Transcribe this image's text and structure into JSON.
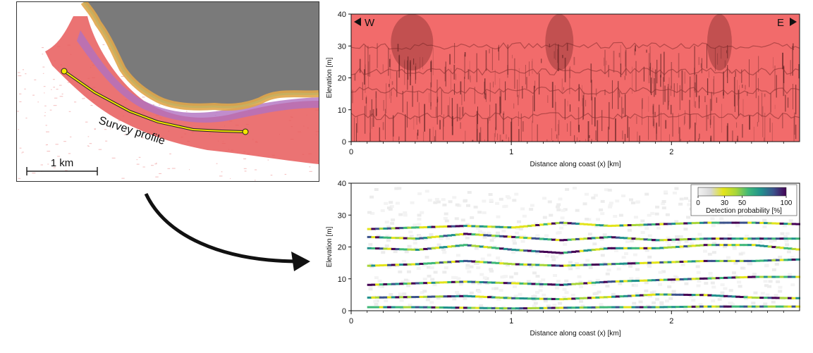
{
  "map": {
    "profile_label": "Survey profile",
    "scale_label": "1 km",
    "colors": {
      "ocean_red": "#e85a5a",
      "land_gray": "#7a7a7a",
      "profile": "#f2e600",
      "contour": "#e0a64a"
    }
  },
  "chart_data": [
    {
      "type": "area",
      "xlabel": "Distance along coast (x) [km]",
      "ylabel": "Elevation [m]",
      "xlim": [
        0,
        2.8
      ],
      "ylim": [
        0,
        40
      ],
      "xticks": [
        0,
        1,
        2
      ],
      "yticks": [
        0,
        10,
        20,
        30,
        40
      ],
      "direction_labels": {
        "west": "W",
        "east": "E"
      },
      "grid": false,
      "colors": {
        "fill": "#f26b6b",
        "shadow": "#5a2020"
      },
      "series": [
        {
          "x": [
            0.0,
            0.1,
            0.2,
            0.3,
            0.4,
            0.5,
            0.6,
            0.7,
            0.8,
            0.9,
            1.0,
            1.1,
            1.2,
            1.3,
            1.4,
            1.5,
            1.6,
            1.7,
            1.8,
            1.9,
            2.0,
            2.1,
            2.2,
            2.3,
            2.4,
            2.5,
            2.6,
            2.7,
            2.8
          ],
          "y": [
            40,
            40,
            40,
            40,
            40,
            40,
            40,
            40,
            40,
            40,
            40,
            40,
            40,
            40,
            40,
            40,
            40,
            40,
            40,
            40,
            40,
            40,
            40,
            40,
            40,
            40,
            40,
            40,
            40
          ]
        }
      ]
    },
    {
      "type": "heatmap",
      "xlabel": "Distance along coast (x) [km]",
      "ylabel": "Elevation [m]",
      "xlim": [
        0,
        2.8
      ],
      "ylim": [
        0,
        40
      ],
      "xticks": [
        0,
        1,
        2
      ],
      "yticks": [
        0,
        10,
        20,
        30,
        40
      ],
      "grid": false,
      "colorbar": {
        "label": "Detection probability [%]",
        "ticks": [
          0,
          30,
          50,
          100
        ],
        "range": [
          0,
          100
        ],
        "colors": [
          "#f2f2f2",
          "#d8d8d8",
          "#e3e41a",
          "#a8d63a",
          "#3fb878",
          "#21918c",
          "#3b528b",
          "#440154"
        ]
      },
      "series": [
        {
          "name": "",
          "x": [
            0.1,
            0.4,
            0.7,
            1.0,
            1.3,
            1.6,
            1.9,
            2.2,
            2.5,
            2.8
          ],
          "y": [
            1.0,
            1.0,
            0.8,
            0.6,
            0.8,
            1.0,
            1.0,
            1.2,
            1.2,
            1.2
          ]
        },
        {
          "name": "",
          "x": [
            0.1,
            0.4,
            0.7,
            1.0,
            1.3,
            1.6,
            1.9,
            2.2,
            2.5,
            2.8
          ],
          "y": [
            4.0,
            4.2,
            4.5,
            3.8,
            3.5,
            4.2,
            5.0,
            4.8,
            4.0,
            3.8
          ]
        },
        {
          "name": "",
          "x": [
            0.1,
            0.4,
            0.7,
            1.0,
            1.3,
            1.6,
            1.9,
            2.2,
            2.5,
            2.8
          ],
          "y": [
            8.0,
            8.5,
            9.0,
            8.5,
            8.0,
            9.0,
            9.5,
            10.0,
            10.5,
            10.5
          ]
        },
        {
          "name": "",
          "x": [
            0.1,
            0.4,
            0.7,
            1.0,
            1.3,
            1.6,
            1.9,
            2.2,
            2.5,
            2.8
          ],
          "y": [
            14.0,
            14.5,
            15.5,
            14.5,
            14.0,
            14.5,
            15.0,
            15.5,
            15.5,
            16.0
          ]
        },
        {
          "name": "",
          "x": [
            0.1,
            0.4,
            0.7,
            1.0,
            1.3,
            1.6,
            1.9,
            2.2,
            2.5,
            2.8
          ],
          "y": [
            19.5,
            19.0,
            20.5,
            19.0,
            18.0,
            19.5,
            19.5,
            20.5,
            20.5,
            19.0
          ]
        },
        {
          "name": "",
          "x": [
            0.1,
            0.4,
            0.7,
            1.0,
            1.3,
            1.6,
            1.9,
            2.2,
            2.5,
            2.8
          ],
          "y": [
            23.0,
            22.5,
            24.0,
            23.0,
            22.0,
            23.0,
            22.0,
            22.5,
            22.5,
            22.5
          ]
        },
        {
          "name": "",
          "x": [
            0.1,
            0.4,
            0.7,
            1.0,
            1.3,
            1.6,
            1.9,
            2.2,
            2.5,
            2.8
          ],
          "y": [
            25.5,
            26.0,
            26.5,
            26.0,
            27.5,
            26.5,
            27.0,
            27.5,
            27.5,
            27.0
          ]
        }
      ]
    }
  ]
}
